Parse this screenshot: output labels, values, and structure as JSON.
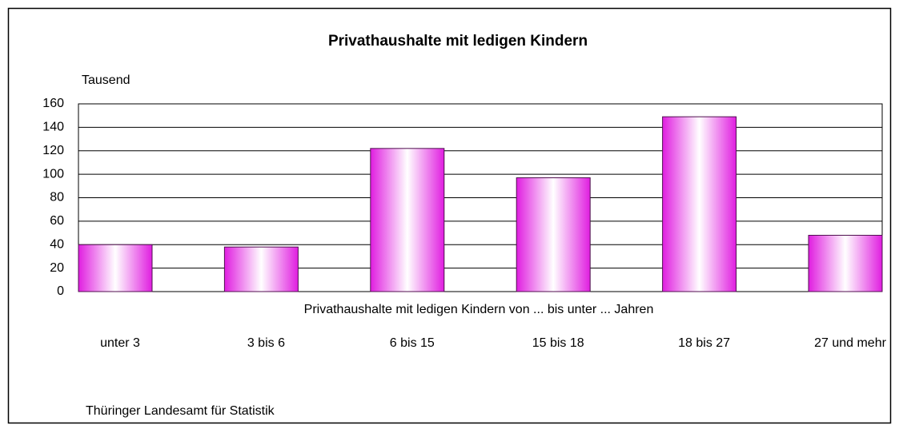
{
  "chart_data": {
    "type": "bar",
    "title": "Privathaushalte mit ledigen Kindern",
    "y_label": "Tausend",
    "x_label": "Privathaushalte mit ledigen Kindern von ... bis unter ... Jahren",
    "source": "Thüringer Landesamt für Statistik",
    "categories": [
      "unter 3",
      "3 bis 6",
      "6 bis 15",
      "15 bis 18",
      "18 bis 27",
      "27 und mehr"
    ],
    "values": [
      40,
      38,
      122,
      97,
      149,
      48
    ],
    "color": "#e01ee0",
    "ylim": [
      0,
      160
    ],
    "yticks": [
      0,
      20,
      40,
      60,
      80,
      100,
      120,
      140,
      160
    ],
    "grid": true
  }
}
